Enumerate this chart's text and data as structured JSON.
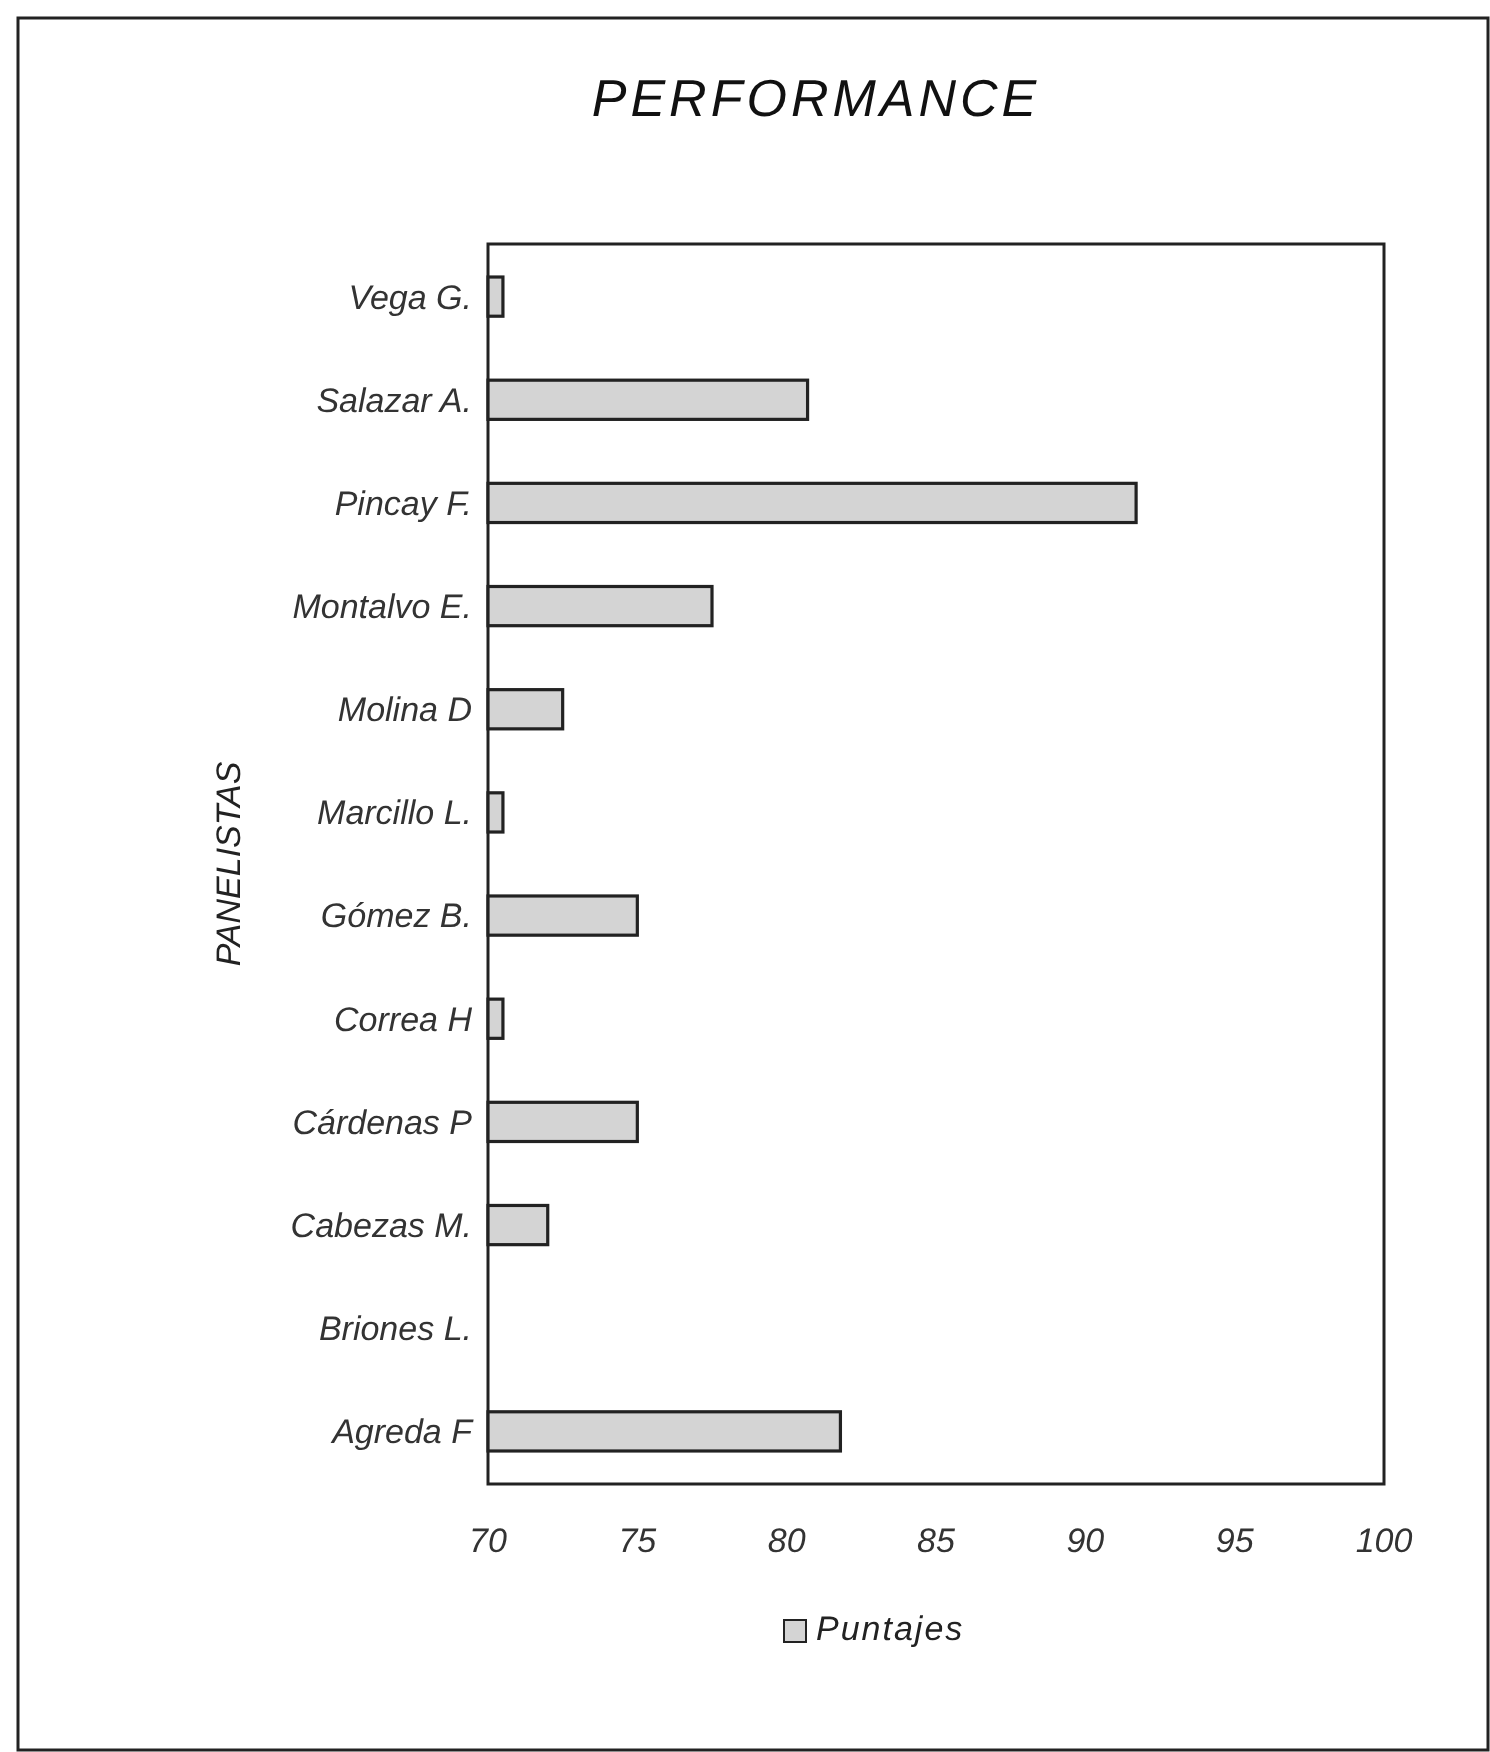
{
  "chart_data": {
    "type": "bar",
    "orientation": "horizontal",
    "title": "PERFORMANCE",
    "ylabel": "PANELISTAS",
    "categories": [
      "Vega G.",
      "Salazar A.",
      "Pincay F.",
      "Montalvo E.",
      "Molina D",
      "Marcillo L.",
      "Gómez B.",
      "Correa H",
      "Cárdenas P",
      "Cabezas M.",
      "Briones L.",
      "Agreda F"
    ],
    "series": [
      {
        "name": "Puntajes",
        "color": "#d4d4d4",
        "values": [
          70.5,
          80.7,
          91.7,
          77.5,
          72.5,
          70.5,
          75,
          70.5,
          75,
          72,
          null,
          81.8
        ]
      }
    ],
    "xlim": [
      70,
      100
    ],
    "xticks": [
      70,
      75,
      80,
      85,
      90,
      95,
      100
    ],
    "grid": false,
    "legend": "bottom"
  }
}
